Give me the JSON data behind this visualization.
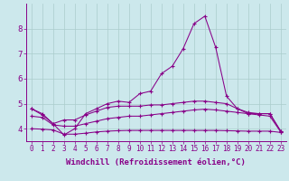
{
  "xlabel": "Windchill (Refroidissement éolien,°C)",
  "background_color": "#cce8ec",
  "line_color": "#880088",
  "grid_color": "#aacccc",
  "x_values": [
    0,
    1,
    2,
    3,
    4,
    5,
    6,
    7,
    8,
    9,
    10,
    11,
    12,
    13,
    14,
    15,
    16,
    17,
    18,
    19,
    20,
    21,
    22,
    23
  ],
  "series1": [
    4.8,
    4.6,
    4.2,
    3.75,
    4.0,
    4.6,
    4.8,
    5.0,
    5.1,
    5.05,
    5.4,
    5.5,
    6.2,
    6.5,
    7.2,
    8.2,
    8.5,
    7.25,
    5.3,
    4.8,
    4.6,
    4.6,
    4.6,
    3.9
  ],
  "series2": [
    4.8,
    4.55,
    4.2,
    4.35,
    4.35,
    4.55,
    4.7,
    4.85,
    4.9,
    4.9,
    4.9,
    4.95,
    4.95,
    5.0,
    5.05,
    5.1,
    5.1,
    5.05,
    5.0,
    4.8,
    4.65,
    4.6,
    4.6,
    3.9
  ],
  "series3": [
    4.5,
    4.45,
    4.15,
    4.1,
    4.1,
    4.2,
    4.3,
    4.4,
    4.45,
    4.5,
    4.5,
    4.55,
    4.6,
    4.65,
    4.7,
    4.75,
    4.78,
    4.75,
    4.7,
    4.65,
    4.6,
    4.55,
    4.5,
    3.87
  ],
  "series4": [
    4.0,
    3.98,
    3.95,
    3.78,
    3.78,
    3.82,
    3.87,
    3.9,
    3.92,
    3.93,
    3.93,
    3.93,
    3.93,
    3.93,
    3.93,
    3.93,
    3.93,
    3.93,
    3.92,
    3.91,
    3.9,
    3.9,
    3.9,
    3.85
  ],
  "ylim": [
    3.5,
    9.0
  ],
  "yticks": [
    4,
    5,
    6,
    7,
    8
  ],
  "xticks": [
    0,
    1,
    2,
    3,
    4,
    5,
    6,
    7,
    8,
    9,
    10,
    11,
    12,
    13,
    14,
    15,
    16,
    17,
    18,
    19,
    20,
    21,
    22,
    23
  ],
  "tick_fontsize": 5.5,
  "xlabel_fontsize": 6.5
}
